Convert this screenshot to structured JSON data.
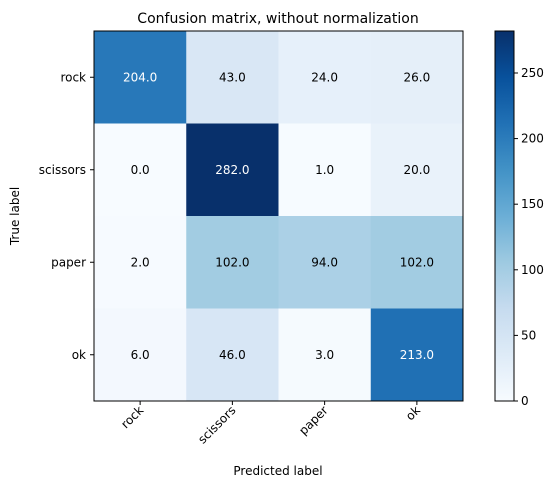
{
  "chart_data": {
    "type": "heatmap",
    "title": "Confusion matrix, without normalization",
    "xlabel": "Predicted label",
    "ylabel": "True label",
    "x_categories": [
      "rock",
      "scissors",
      "paper",
      "ok"
    ],
    "y_categories": [
      "rock",
      "scissors",
      "paper",
      "ok"
    ],
    "values": [
      [
        204.0,
        43.0,
        24.0,
        26.0
      ],
      [
        0.0,
        282.0,
        1.0,
        20.0
      ],
      [
        2.0,
        102.0,
        94.0,
        102.0
      ],
      [
        6.0,
        46.0,
        3.0,
        213.0
      ]
    ],
    "value_labels": [
      [
        "204.0",
        "43.0",
        "24.0",
        "26.0"
      ],
      [
        "0.0",
        "282.0",
        "1.0",
        "20.0"
      ],
      [
        "2.0",
        "102.0",
        "94.0",
        "102.0"
      ],
      [
        "6.0",
        "46.0",
        "3.0",
        "213.0"
      ]
    ],
    "colormap": "Blues",
    "color_range": [
      0,
      282
    ],
    "colorbar_ticks": [
      0,
      50,
      100,
      150,
      200,
      250
    ],
    "colorbar_tick_labels": [
      "0",
      "50",
      "100",
      "150",
      "200",
      "250"
    ],
    "grid": false,
    "xtick_rotation_deg": 45,
    "colors": {
      "low": "#f7fbff",
      "high": "#08306b",
      "text_dark": "#000000",
      "text_light": "#ffffff"
    }
  }
}
